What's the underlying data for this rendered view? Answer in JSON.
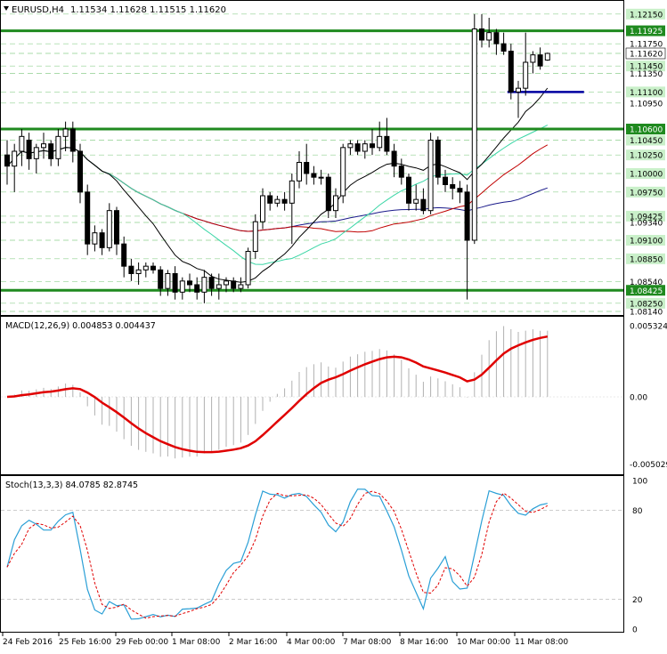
{
  "header": {
    "symbol": "EURUSD,H4",
    "ohlc": "1.11534 1.11628 1.11515 1.11620"
  },
  "price_axis": {
    "ticks": [
      "1.12150",
      "1.11925",
      "1.11750",
      "1.11620",
      "1.11450",
      "1.11350",
      "1.11100",
      "1.10950",
      "1.10600",
      "1.10450",
      "1.10250",
      "1.10000",
      "1.09750",
      "1.09425",
      "1.09340",
      "1.09100",
      "1.08850",
      "1.08540",
      "1.08425",
      "1.08250",
      "1.08140"
    ]
  },
  "macd": {
    "label": "MACD(12,26,9) 0.004853 0.004437",
    "ticks": [
      "0.005324",
      "0.00",
      "-0.005029"
    ]
  },
  "stoch": {
    "label": "Stoch(13,3,3) 84.0785 82.8745",
    "ticks": [
      "100",
      "80",
      "20",
      "0"
    ]
  },
  "time_axis": [
    "24 Feb 2016",
    "25 Feb 16:00",
    "29 Feb 00:00",
    "1 Mar 08:00",
    "2 Mar 16:00",
    "4 Mar 00:00",
    "7 Mar 08:00",
    "8 Mar 16:00",
    "10 Mar 00:00",
    "11 Mar 08:00"
  ],
  "colors": {
    "support_resistance": "#1f8a1f",
    "bull_candle": "#ffffff",
    "bear_candle": "#000000",
    "ma_red": "#c00000",
    "ma_blue": "#1a1a8a",
    "ma_black": "#000000",
    "ma_teal": "#3ad6a6",
    "macd_signal": "#e00000",
    "macd_hist": "#b0b0b0",
    "stoch_main": "#2a9fd6",
    "stoch_signal": "#e00000",
    "level_line": "#0000a0"
  },
  "chart_data": {
    "type": "candlestick",
    "timeframe": "H4",
    "candles": [
      {
        "o": 1.1025,
        "h": 1.1045,
        "l": 1.0985,
        "c": 1.101
      },
      {
        "o": 1.101,
        "h": 1.104,
        "l": 1.0975,
        "c": 1.103
      },
      {
        "o": 1.103,
        "h": 1.106,
        "l": 1.101,
        "c": 1.105
      },
      {
        "o": 1.1045,
        "h": 1.1055,
        "l": 1.1005,
        "c": 1.102
      },
      {
        "o": 1.102,
        "h": 1.104,
        "l": 1.1,
        "c": 1.1035
      },
      {
        "o": 1.1035,
        "h": 1.1055,
        "l": 1.102,
        "c": 1.104
      },
      {
        "o": 1.104,
        "h": 1.1045,
        "l": 1.101,
        "c": 1.102
      },
      {
        "o": 1.102,
        "h": 1.106,
        "l": 1.101,
        "c": 1.105
      },
      {
        "o": 1.105,
        "h": 1.107,
        "l": 1.103,
        "c": 1.106
      },
      {
        "o": 1.106,
        "h": 1.107,
        "l": 1.1015,
        "c": 1.103
      },
      {
        "o": 1.103,
        "h": 1.104,
        "l": 1.096,
        "c": 1.0975
      },
      {
        "o": 1.0975,
        "h": 1.0985,
        "l": 1.089,
        "c": 1.0905
      },
      {
        "o": 1.0905,
        "h": 1.093,
        "l": 1.0895,
        "c": 1.092
      },
      {
        "o": 1.092,
        "h": 1.0925,
        "l": 1.089,
        "c": 1.09
      },
      {
        "o": 1.09,
        "h": 1.096,
        "l": 1.0895,
        "c": 1.095
      },
      {
        "o": 1.095,
        "h": 1.0955,
        "l": 1.089,
        "c": 1.0905
      },
      {
        "o": 1.0905,
        "h": 1.0915,
        "l": 1.086,
        "c": 1.0875
      },
      {
        "o": 1.0875,
        "h": 1.0885,
        "l": 1.0855,
        "c": 1.0865
      },
      {
        "o": 1.0865,
        "h": 1.088,
        "l": 1.085,
        "c": 1.087
      },
      {
        "o": 1.087,
        "h": 1.088,
        "l": 1.086,
        "c": 1.0875
      },
      {
        "o": 1.0875,
        "h": 1.088,
        "l": 1.0865,
        "c": 1.087
      },
      {
        "o": 1.087,
        "h": 1.0875,
        "l": 1.0835,
        "c": 1.0845
      },
      {
        "o": 1.0845,
        "h": 1.087,
        "l": 1.0835,
        "c": 1.0865
      },
      {
        "o": 1.0865,
        "h": 1.0875,
        "l": 1.083,
        "c": 1.084
      },
      {
        "o": 1.084,
        "h": 1.086,
        "l": 1.083,
        "c": 1.0855
      },
      {
        "o": 1.0855,
        "h": 1.0865,
        "l": 1.084,
        "c": 1.085
      },
      {
        "o": 1.085,
        "h": 1.086,
        "l": 1.083,
        "c": 1.084
      },
      {
        "o": 1.084,
        "h": 1.087,
        "l": 1.0825,
        "c": 1.086
      },
      {
        "o": 1.086,
        "h": 1.0865,
        "l": 1.0835,
        "c": 1.0845
      },
      {
        "o": 1.0845,
        "h": 1.0865,
        "l": 1.083,
        "c": 1.085
      },
      {
        "o": 1.085,
        "h": 1.086,
        "l": 1.084,
        "c": 1.0855
      },
      {
        "o": 1.0855,
        "h": 1.086,
        "l": 1.084,
        "c": 1.0845
      },
      {
        "o": 1.0845,
        "h": 1.086,
        "l": 1.084,
        "c": 1.085
      },
      {
        "o": 1.085,
        "h": 1.09,
        "l": 1.0845,
        "c": 1.0895
      },
      {
        "o": 1.0895,
        "h": 1.0945,
        "l": 1.0885,
        "c": 1.0935
      },
      {
        "o": 1.0935,
        "h": 1.098,
        "l": 1.0925,
        "c": 1.097
      },
      {
        "o": 1.097,
        "h": 1.0975,
        "l": 1.095,
        "c": 1.096
      },
      {
        "o": 1.096,
        "h": 1.097,
        "l": 1.0955,
        "c": 1.0965
      },
      {
        "o": 1.0965,
        "h": 1.0975,
        "l": 1.095,
        "c": 1.096
      },
      {
        "o": 1.096,
        "h": 1.1,
        "l": 1.0905,
        "c": 1.099
      },
      {
        "o": 1.099,
        "h": 1.103,
        "l": 1.098,
        "c": 1.1015
      },
      {
        "o": 1.1015,
        "h": 1.104,
        "l": 1.0985,
        "c": 1.1
      },
      {
        "o": 1.1,
        "h": 1.101,
        "l": 1.0985,
        "c": 1.0995
      },
      {
        "o": 1.0995,
        "h": 1.1005,
        "l": 1.0985,
        "c": 1.0995
      },
      {
        "o": 1.0995,
        "h": 1.1,
        "l": 1.094,
        "c": 1.095
      },
      {
        "o": 1.095,
        "h": 1.098,
        "l": 1.094,
        "c": 1.097
      },
      {
        "o": 1.097,
        "h": 1.104,
        "l": 1.096,
        "c": 1.1035
      },
      {
        "o": 1.1035,
        "h": 1.1045,
        "l": 1.1025,
        "c": 1.104
      },
      {
        "o": 1.104,
        "h": 1.1045,
        "l": 1.1025,
        "c": 1.103
      },
      {
        "o": 1.103,
        "h": 1.1045,
        "l": 1.102,
        "c": 1.104
      },
      {
        "o": 1.104,
        "h": 1.106,
        "l": 1.1025,
        "c": 1.1035
      },
      {
        "o": 1.1035,
        "h": 1.107,
        "l": 1.103,
        "c": 1.105
      },
      {
        "o": 1.105,
        "h": 1.1075,
        "l": 1.1025,
        "c": 1.103
      },
      {
        "o": 1.103,
        "h": 1.104,
        "l": 1.0995,
        "c": 1.101
      },
      {
        "o": 1.101,
        "h": 1.102,
        "l": 1.0985,
        "c": 1.0995
      },
      {
        "o": 1.0995,
        "h": 1.1,
        "l": 1.095,
        "c": 1.096
      },
      {
        "o": 1.096,
        "h": 1.0985,
        "l": 1.095,
        "c": 1.0965
      },
      {
        "o": 1.0965,
        "h": 1.098,
        "l": 1.0945,
        "c": 1.095
      },
      {
        "o": 1.095,
        "h": 1.1055,
        "l": 1.0945,
        "c": 1.1045
      },
      {
        "o": 1.1045,
        "h": 1.105,
        "l": 1.0985,
        "c": 1.0995
      },
      {
        "o": 1.0995,
        "h": 1.1005,
        "l": 1.0975,
        "c": 1.0985
      },
      {
        "o": 1.0985,
        "h": 1.0995,
        "l": 1.0965,
        "c": 1.098
      },
      {
        "o": 1.098,
        "h": 1.099,
        "l": 1.096,
        "c": 1.0975
      },
      {
        "o": 1.0975,
        "h": 1.0985,
        "l": 1.083,
        "c": 1.091
      },
      {
        "o": 1.091,
        "h": 1.1215,
        "l": 1.0905,
        "c": 1.1195
      },
      {
        "o": 1.1195,
        "h": 1.1215,
        "l": 1.117,
        "c": 1.118
      },
      {
        "o": 1.118,
        "h": 1.121,
        "l": 1.117,
        "c": 1.119
      },
      {
        "o": 1.119,
        "h": 1.1195,
        "l": 1.116,
        "c": 1.1175
      },
      {
        "o": 1.1175,
        "h": 1.119,
        "l": 1.116,
        "c": 1.1165
      },
      {
        "o": 1.1165,
        "h": 1.1175,
        "l": 1.11,
        "c": 1.111
      },
      {
        "o": 1.111,
        "h": 1.1125,
        "l": 1.1075,
        "c": 1.1115
      },
      {
        "o": 1.1115,
        "h": 1.119,
        "l": 1.1105,
        "c": 1.115
      },
      {
        "o": 1.115,
        "h": 1.1165,
        "l": 1.1135,
        "c": 1.116
      },
      {
        "o": 1.116,
        "h": 1.117,
        "l": 1.114,
        "c": 1.1145
      },
      {
        "o": 1.1153,
        "h": 1.1163,
        "l": 1.1152,
        "c": 1.1162
      }
    ],
    "horizontal_levels": [
      1.11925,
      1.106,
      1.08425
    ],
    "level_segment": 1.111,
    "price_range": [
      1.0814,
      1.1228
    ],
    "macd_range": [
      -0.0056,
      0.0056
    ],
    "stoch_range": [
      0,
      100
    ]
  }
}
